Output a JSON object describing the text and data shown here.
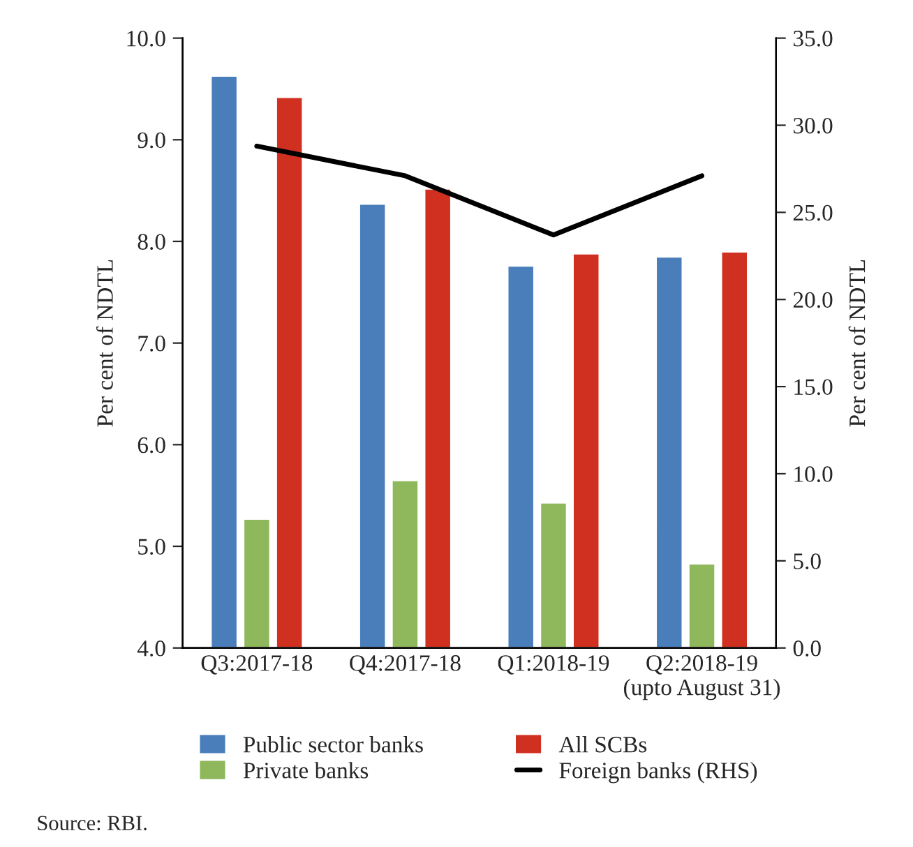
{
  "chart_data": {
    "type": "bar",
    "categories": [
      "Q3:2017-18",
      "Q4:2017-18",
      "Q1:2018-19",
      "Q2:2018-19\n(upto August 31)"
    ],
    "series": [
      {
        "name": "Public sector banks",
        "color": "#4a7ebb",
        "values": [
          9.63,
          8.37,
          7.76,
          7.85
        ]
      },
      {
        "name": "Private banks",
        "color": "#8fb85c",
        "values": [
          5.27,
          5.65,
          5.43,
          4.83
        ]
      },
      {
        "name": "All SCBs",
        "color": "#d03020",
        "values": [
          9.42,
          8.52,
          7.88,
          7.9
        ]
      },
      {
        "name": "Foreign banks (RHS)",
        "color": "#000000",
        "type": "line",
        "axis": "y2",
        "values": [
          28.8,
          27.1,
          23.7,
          27.1
        ]
      }
    ],
    "ylabel": "Per cent of NDTL",
    "y2label": "Per cent of NDTL",
    "ylim": [
      4.0,
      10.0
    ],
    "yticks": [
      {
        "value": 4,
        "label": "4.0"
      },
      {
        "value": 5,
        "label": "5.0"
      },
      {
        "value": 6,
        "label": "6.0"
      },
      {
        "value": 7,
        "label": "7.0"
      },
      {
        "value": 8,
        "label": "8.0"
      },
      {
        "value": 9,
        "label": "9.0"
      },
      {
        "value": 10,
        "label": "10.0"
      }
    ],
    "y2lim": [
      0.0,
      35.0
    ],
    "y2ticks": [
      {
        "value": 0,
        "label": "0.0"
      },
      {
        "value": 5,
        "label": "5.0"
      },
      {
        "value": 10,
        "label": "10.0"
      },
      {
        "value": 15,
        "label": "15.0"
      },
      {
        "value": 20,
        "label": "20.0"
      },
      {
        "value": 25,
        "label": "25.0"
      },
      {
        "value": 30,
        "label": "30.0"
      },
      {
        "value": 35,
        "label": "35.0"
      }
    ],
    "grid": false,
    "legend": "bottom",
    "annotations": [
      "Source: RBI."
    ]
  }
}
